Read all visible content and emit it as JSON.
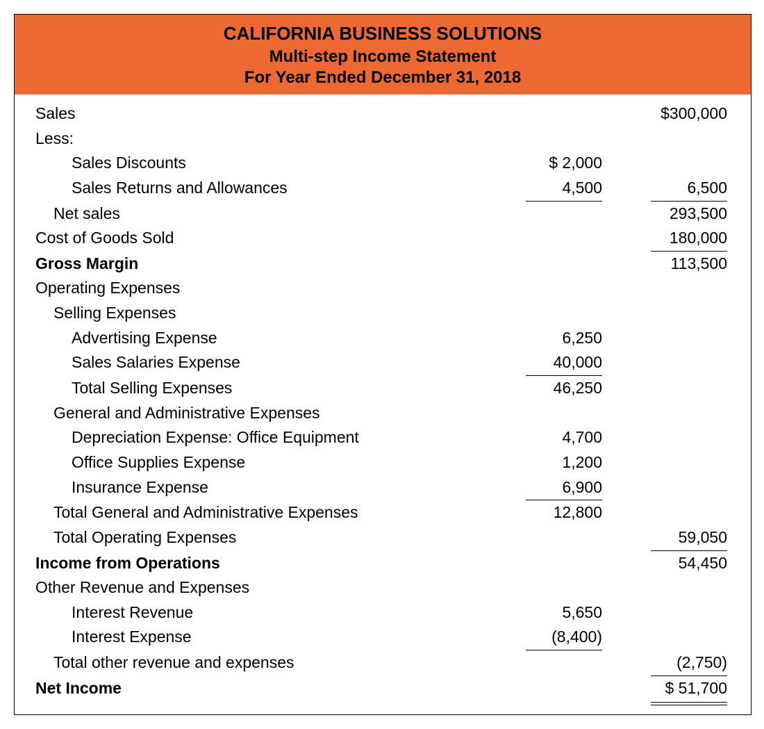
{
  "colors": {
    "header_bg": "#ec6a32",
    "header_text": "#000000",
    "border": "#000000",
    "body_text": "#000000",
    "background": "#ffffff"
  },
  "typography": {
    "font_family": "Arial, Helvetica, sans-serif",
    "company_fontsize_pt": 20,
    "title_fontsize_pt": 18,
    "body_fontsize_pt": 17
  },
  "header": {
    "company": "CALIFORNIA BUSINESS SOLUTIONS",
    "title": "Multi-step Income Statement",
    "period": "For Year Ended December 31, 2018"
  },
  "statement": {
    "sales": {
      "label": "Sales",
      "value": "$300,000"
    },
    "less_label": "Less:",
    "sales_discounts": {
      "label": "Sales Discounts",
      "value": "$   2,000"
    },
    "sales_returns": {
      "label": "Sales Returns and Allowances",
      "value": "4,500",
      "total": "6,500"
    },
    "net_sales": {
      "label": "Net sales",
      "value": "293,500"
    },
    "cogs": {
      "label": "Cost of Goods Sold",
      "value": "180,000"
    },
    "gross_margin": {
      "label": "Gross Margin",
      "value": "113,500"
    },
    "operating_expenses_label": "Operating Expenses",
    "selling_expenses_label": "Selling Expenses",
    "advertising": {
      "label": "Advertising Expense",
      "value": "6,250"
    },
    "sales_salaries": {
      "label": "Sales Salaries Expense",
      "value": "40,000"
    },
    "total_selling": {
      "label": "Total Selling Expenses",
      "value": "46,250"
    },
    "ga_label": "General and Administrative Expenses",
    "depreciation": {
      "label": "Depreciation Expense: Office Equipment",
      "value": "4,700"
    },
    "office_supplies": {
      "label": "Office Supplies Expense",
      "value": "1,200"
    },
    "insurance": {
      "label": "Insurance Expense",
      "value": "6,900"
    },
    "total_ga": {
      "label": "Total General and Administrative Expenses",
      "value": "12,800"
    },
    "total_operating": {
      "label": "Total Operating Expenses",
      "value": "59,050"
    },
    "income_operations": {
      "label": "Income from Operations",
      "value": "54,450"
    },
    "other_label": "Other Revenue and Expenses",
    "interest_revenue": {
      "label": "Interest Revenue",
      "value": "5,650"
    },
    "interest_expense": {
      "label": "Interest Expense",
      "value": "(8,400)"
    },
    "total_other": {
      "label": "Total other revenue and expenses",
      "value": "(2,750)"
    },
    "net_income": {
      "label": "Net Income",
      "value": "$  51,700"
    }
  }
}
